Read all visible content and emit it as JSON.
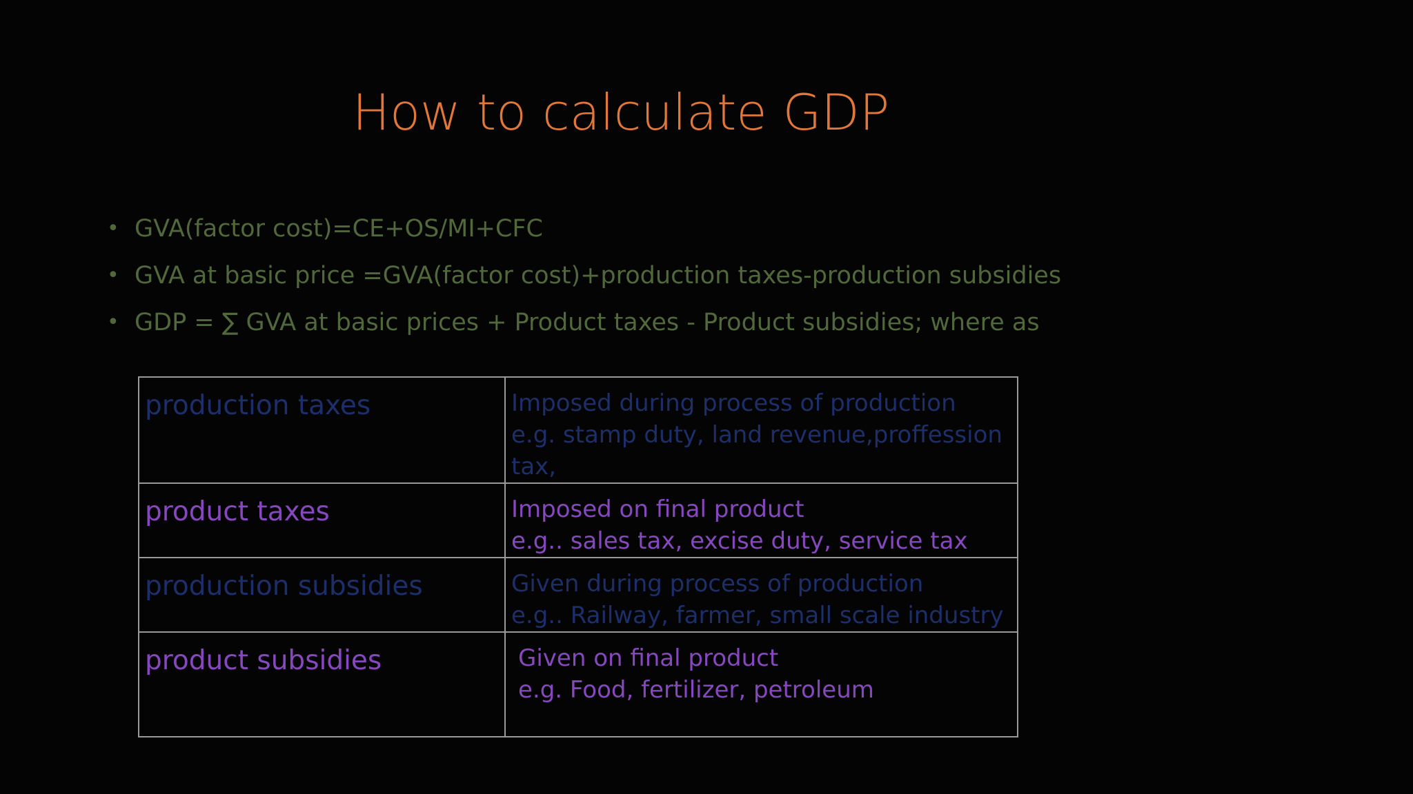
{
  "colors": {
    "background": "#040404",
    "title": "#e2773a",
    "bullet_text": "#51683a",
    "blue_text": "#1c2f6a",
    "purple_text": "#8747be",
    "table_border": "#9a9a9a"
  },
  "title": "How to calculate GDP",
  "bullets": [
    "GVA(factor cost)=CE+OS/MI+CFC",
    "GVA at basic price =GVA(factor cost)+production taxes-production subsidies",
    "GDP = ∑ GVA at basic prices + Product taxes - Product subsidies;  where as"
  ],
  "table": {
    "rows": [
      {
        "term": "production taxes",
        "desc": [
          "Imposed during process of production",
          "e.g.  stamp duty, land revenue,proffession",
          "tax,"
        ]
      },
      {
        "term": "product taxes",
        "desc": [
          "Imposed on final product",
          "e.g.. sales tax, excise duty, service tax"
        ]
      },
      {
        "term": "production subsidies",
        "desc": [
          "Given during process of production",
          "e.g.. Railway, farmer, small scale industry"
        ]
      },
      {
        "term": "product subsidies",
        "desc": [
          "Given on final product",
          "e.g. Food, fertilizer, petroleum"
        ]
      }
    ]
  }
}
